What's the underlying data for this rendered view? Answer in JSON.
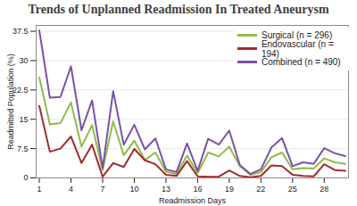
{
  "chart_data": {
    "type": "line",
    "title": "Trends of Unplanned Readmission In Treated Aneurysm",
    "x_label": "Readmission Days",
    "y_label": "Readmitted Population (%)",
    "x": [
      1,
      2,
      3,
      4,
      5,
      6,
      7,
      8,
      9,
      10,
      11,
      12,
      13,
      14,
      15,
      16,
      17,
      18,
      19,
      20,
      21,
      22,
      23,
      24,
      25,
      26,
      27,
      28,
      29,
      30
    ],
    "series": [
      {
        "name": "Surgical (n = 296)",
        "color": "#8fbc4a",
        "values": [
          25.7,
          13.7,
          14,
          19.3,
          8,
          13.5,
          2,
          14.5,
          5.8,
          9.5,
          4.6,
          6.5,
          1.6,
          1,
          5.7,
          1.2,
          6.5,
          5.5,
          8,
          3,
          0.8,
          1.5,
          5.3,
          6.5,
          2.2,
          2.5,
          2.4,
          5,
          4,
          3.6
        ]
      },
      {
        "name": "Endovascular (n = 194)",
        "color": "#a52a2a",
        "values": [
          18.4,
          6.7,
          7.5,
          10.6,
          3.8,
          8.5,
          0.3,
          3.8,
          2.8,
          7.4,
          4.5,
          3.5,
          0.8,
          0.5,
          4.3,
          0.4,
          0.3,
          0.3,
          1.9,
          0.5,
          0.2,
          0.5,
          3.2,
          3,
          0.8,
          0.5,
          0.4,
          3.5,
          2,
          1.8
        ]
      },
      {
        "name": "Combined (n = 490)",
        "color": "#7b52a6",
        "values": [
          37.7,
          20.5,
          20.7,
          28.5,
          12.2,
          19.8,
          2.5,
          22.2,
          8.5,
          13.6,
          7.3,
          10.1,
          2.2,
          1.5,
          8.8,
          1.8,
          10,
          8.5,
          12.1,
          3.3,
          1,
          2.2,
          7.8,
          10.2,
          3,
          4,
          3.6,
          7.6,
          6.3,
          5.6
        ]
      }
    ],
    "xlim": [
      0.7,
      30.3
    ],
    "xticks": [
      1,
      4,
      7,
      10,
      13,
      16,
      19,
      22,
      25,
      28
    ],
    "ylim": [
      0,
      39
    ],
    "yticks": [
      0,
      7.5,
      15,
      22.5,
      30,
      37.5
    ],
    "grid": true,
    "legend": "top-right",
    "line_style": "solid"
  }
}
